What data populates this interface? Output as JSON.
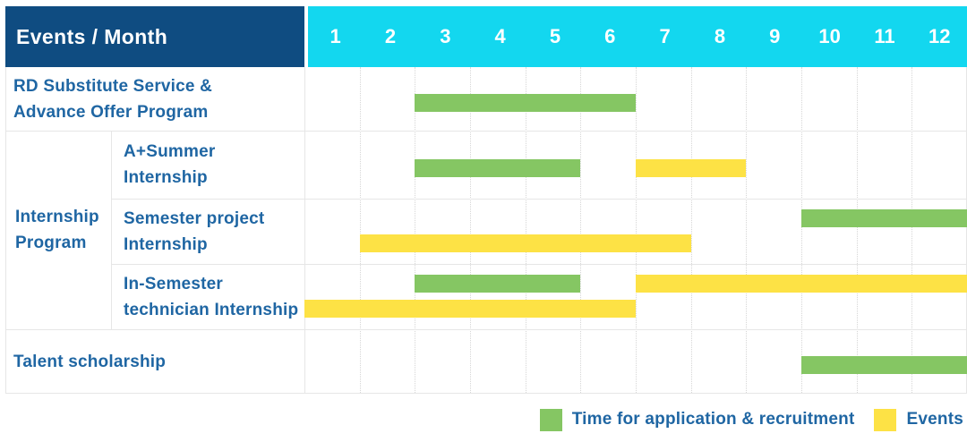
{
  "header": {
    "title": "Events / Month",
    "months": [
      "1",
      "2",
      "3",
      "4",
      "5",
      "6",
      "7",
      "8",
      "9",
      "10",
      "11",
      "12"
    ]
  },
  "group": {
    "label_lines": [
      "Internship",
      "Program"
    ],
    "label": "Internship Program",
    "spans_rows": [
      2,
      4
    ]
  },
  "rows": [
    {
      "label": "RD Substitute Service & Advance Offer Program",
      "label_lines": [
        "RD Substitute Service &",
        "Advance Offer Program"
      ],
      "in_group": false,
      "bars": [
        {
          "color": "green",
          "start": 3,
          "end": 6,
          "lane": "single"
        }
      ]
    },
    {
      "label": "A+Summer Internship",
      "label_lines": [
        "A+Summer",
        "Internship"
      ],
      "in_group": true,
      "bars": [
        {
          "color": "green",
          "start": 3,
          "end": 5,
          "lane": "single"
        },
        {
          "color": "yellow",
          "start": 7,
          "end": 8,
          "lane": "single"
        }
      ]
    },
    {
      "label": "Semester project Internship",
      "label_lines": [
        "Semester project",
        "Internship"
      ],
      "in_group": true,
      "bars": [
        {
          "color": "green",
          "start": 10,
          "end": 12,
          "lane": "top"
        },
        {
          "color": "yellow",
          "start": 2,
          "end": 7,
          "lane": "bottom"
        }
      ]
    },
    {
      "label": "In-Semester technician Internship",
      "label_lines": [
        "In-Semester",
        "technician Internship"
      ],
      "in_group": true,
      "bars": [
        {
          "color": "green",
          "start": 3,
          "end": 5,
          "lane": "top"
        },
        {
          "color": "yellow",
          "start": 7,
          "end": 12,
          "lane": "top"
        },
        {
          "color": "yellow",
          "start": 1,
          "end": 6,
          "lane": "bottom"
        }
      ]
    },
    {
      "label": "Talent scholarship",
      "label_lines": [
        "Talent scholarship"
      ],
      "in_group": false,
      "bars": [
        {
          "color": "green",
          "start": 10,
          "end": 12,
          "lane": "single"
        }
      ]
    }
  ],
  "legend": {
    "items": [
      {
        "label": "Time for application & recruitment",
        "color_key": "green",
        "color": "#85c663"
      },
      {
        "label": "Events",
        "color_key": "yellow",
        "color": "#fde245"
      }
    ]
  },
  "colors": {
    "header_bg": "#0f4c81",
    "months_bg": "#13d7ef",
    "green": "#85c663",
    "yellow": "#fde245",
    "label_text": "#1f66a3",
    "grid": "#e6e6e6"
  },
  "chart_data": {
    "type": "gantt",
    "title": "Events / Month",
    "x": {
      "label": "Month",
      "ticks": [
        1,
        2,
        3,
        4,
        5,
        6,
        7,
        8,
        9,
        10,
        11,
        12
      ],
      "range": [
        1,
        12
      ],
      "grid": true
    },
    "legend_position": "bottom-right",
    "series_legend": [
      {
        "name": "Time for application & recruitment",
        "color": "#85c663"
      },
      {
        "name": "Events",
        "color": "#fde245"
      }
    ],
    "tasks": [
      {
        "row": "RD Substitute Service & Advance Offer Program",
        "group": null,
        "bars": [
          {
            "series": "Time for application & recruitment",
            "start_month": 3,
            "end_month": 6
          }
        ]
      },
      {
        "row": "A+Summer Internship",
        "group": "Internship Program",
        "bars": [
          {
            "series": "Time for application & recruitment",
            "start_month": 3,
            "end_month": 5
          },
          {
            "series": "Events",
            "start_month": 7,
            "end_month": 8
          }
        ]
      },
      {
        "row": "Semester project Internship",
        "group": "Internship Program",
        "bars": [
          {
            "series": "Time for application & recruitment",
            "start_month": 10,
            "end_month": 12
          },
          {
            "series": "Events",
            "start_month": 2,
            "end_month": 7
          }
        ]
      },
      {
        "row": "In-Semester technician Internship",
        "group": "Internship Program",
        "bars": [
          {
            "series": "Time for application & recruitment",
            "start_month": 3,
            "end_month": 5
          },
          {
            "series": "Events",
            "start_month": 7,
            "end_month": 12
          },
          {
            "series": "Events",
            "start_month": 1,
            "end_month": 6
          }
        ]
      },
      {
        "row": "Talent scholarship",
        "group": null,
        "bars": [
          {
            "series": "Time for application & recruitment",
            "start_month": 10,
            "end_month": 12
          }
        ]
      }
    ]
  }
}
